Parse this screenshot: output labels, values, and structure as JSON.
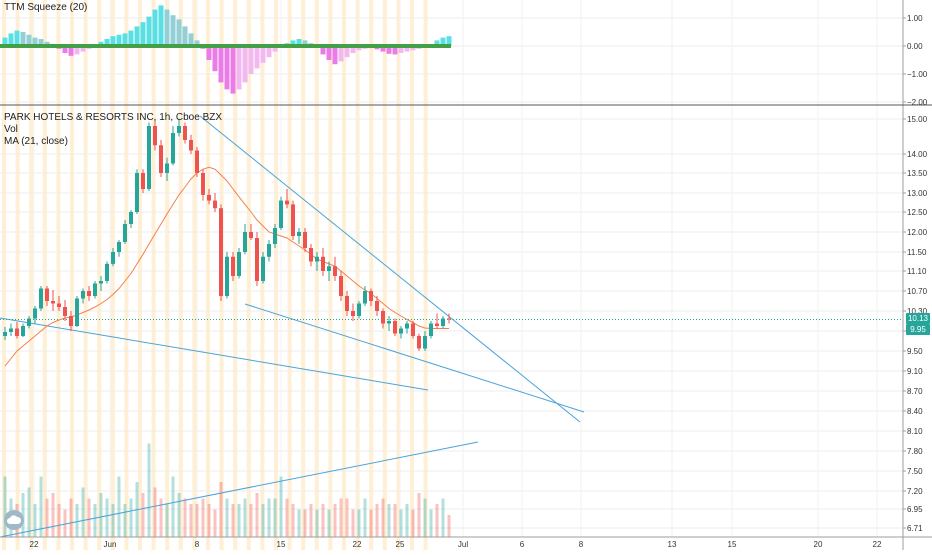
{
  "indicator_panel": {
    "title": "TTM Squeeze (20)",
    "ticks": [
      "1.00",
      "0.00",
      "−1.00",
      "−2.00"
    ]
  },
  "main_panel": {
    "title": "PARK HOTELS & RESORTS INC, 1h, Cboe BZX",
    "vol_label": "Vol",
    "ma_label": "MA (21, close)",
    "price_ticks": [
      "15.00",
      "14.00",
      "13.50",
      "13.00",
      "12.50",
      "12.00",
      "11.50",
      "11.10",
      "10.70",
      "10.30",
      "9.90",
      "9.50",
      "9.10",
      "8.70",
      "8.40",
      "8.10",
      "7.80",
      "7.50",
      "7.20",
      "6.95",
      "6.71"
    ],
    "last_price_tag": "10.13",
    "ma_tag": "9.95"
  },
  "x_axis": {
    "labels": [
      "22",
      "Jun",
      "8",
      "15",
      "22",
      "25",
      "Jul",
      "6",
      "8",
      "13",
      "15",
      "20",
      "22"
    ]
  },
  "colors": {
    "up": "#26a69a",
    "down": "#ef5350",
    "ma": "#f57f4a",
    "trendline": "#4aa3d9",
    "session": "#ffe2b0",
    "squeeze_pos_strong": "#59e0e6",
    "squeeze_pos_weak": "#92cfd6",
    "squeeze_neg_strong": "#ea7ce8",
    "squeeze_neg_weak": "#f2b8f0",
    "zero_line": "#43a047"
  },
  "chart_data": {
    "type": "candlestick",
    "title": "PARK HOTELS & RESORTS INC, 1h, Cboe BZX",
    "ylim": [
      6.7,
      15.2
    ],
    "ohlc": [
      [
        9.8,
        9.98,
        9.72,
        9.88
      ],
      [
        9.88,
        10.05,
        9.8,
        9.95
      ],
      [
        9.95,
        10.08,
        9.75,
        9.8
      ],
      [
        9.8,
        10.05,
        9.78,
        10.0
      ],
      [
        10.0,
        10.2,
        9.95,
        10.15
      ],
      [
        10.15,
        10.4,
        10.05,
        10.35
      ],
      [
        10.35,
        10.8,
        10.3,
        10.75
      ],
      [
        10.75,
        10.8,
        10.4,
        10.5
      ],
      [
        10.5,
        10.72,
        10.3,
        10.45
      ],
      [
        10.45,
        10.6,
        10.3,
        10.38
      ],
      [
        10.38,
        10.52,
        10.1,
        10.2
      ],
      [
        10.2,
        10.3,
        9.9,
        10.0
      ],
      [
        10.0,
        10.6,
        9.98,
        10.55
      ],
      [
        10.55,
        10.75,
        10.45,
        10.7
      ],
      [
        10.7,
        10.8,
        10.5,
        10.6
      ],
      [
        10.6,
        10.9,
        10.55,
        10.85
      ],
      [
        10.85,
        11.0,
        10.7,
        10.9
      ],
      [
        10.9,
        11.3,
        10.85,
        11.25
      ],
      [
        11.25,
        11.6,
        11.2,
        11.5
      ],
      [
        11.5,
        11.8,
        11.4,
        11.75
      ],
      [
        11.75,
        12.3,
        11.7,
        12.2
      ],
      [
        12.2,
        12.55,
        12.1,
        12.5
      ],
      [
        12.5,
        13.6,
        12.45,
        13.5
      ],
      [
        13.5,
        13.6,
        13.0,
        13.1
      ],
      [
        13.1,
        14.9,
        13.05,
        14.8
      ],
      [
        14.8,
        15.0,
        14.1,
        14.25
      ],
      [
        14.25,
        14.4,
        13.4,
        13.5
      ],
      [
        13.5,
        13.9,
        13.3,
        13.75
      ],
      [
        13.75,
        14.8,
        13.7,
        14.6
      ],
      [
        14.6,
        15.0,
        14.5,
        14.8
      ],
      [
        14.8,
        14.9,
        14.3,
        14.4
      ],
      [
        14.4,
        14.55,
        14.0,
        14.1
      ],
      [
        14.1,
        14.2,
        13.4,
        13.5
      ],
      [
        13.5,
        13.6,
        12.8,
        12.95
      ],
      [
        12.95,
        13.1,
        12.7,
        12.8
      ],
      [
        12.8,
        13.0,
        12.5,
        12.6
      ],
      [
        12.6,
        12.7,
        10.5,
        10.6
      ],
      [
        10.6,
        11.5,
        10.55,
        11.4
      ],
      [
        11.4,
        11.5,
        10.9,
        11.0
      ],
      [
        11.0,
        11.6,
        10.95,
        11.5
      ],
      [
        11.5,
        12.2,
        11.45,
        12.0
      ],
      [
        12.0,
        12.2,
        11.8,
        11.85
      ],
      [
        11.85,
        12.0,
        10.8,
        10.9
      ],
      [
        10.9,
        11.5,
        10.85,
        11.4
      ],
      [
        11.4,
        11.8,
        11.3,
        11.7
      ],
      [
        11.7,
        12.2,
        11.6,
        12.1
      ],
      [
        12.1,
        12.9,
        12.05,
        12.8
      ],
      [
        12.8,
        13.1,
        12.6,
        12.7
      ],
      [
        12.7,
        12.8,
        11.8,
        11.9
      ],
      [
        11.9,
        12.1,
        11.7,
        12.0
      ],
      [
        12.0,
        12.1,
        11.5,
        11.6
      ],
      [
        11.6,
        11.7,
        11.2,
        11.3
      ],
      [
        11.3,
        11.5,
        11.1,
        11.4
      ],
      [
        11.4,
        11.6,
        11.0,
        11.1
      ],
      [
        11.1,
        11.3,
        10.9,
        11.2
      ],
      [
        11.2,
        11.4,
        10.9,
        11.0
      ],
      [
        11.0,
        11.1,
        10.5,
        10.6
      ],
      [
        10.6,
        10.7,
        10.2,
        10.3
      ],
      [
        10.3,
        10.45,
        10.1,
        10.2
      ],
      [
        10.2,
        10.5,
        10.15,
        10.45
      ],
      [
        10.45,
        10.8,
        10.4,
        10.7
      ],
      [
        10.7,
        10.75,
        10.4,
        10.5
      ],
      [
        10.5,
        10.6,
        10.2,
        10.3
      ],
      [
        10.3,
        10.35,
        9.95,
        10.05
      ],
      [
        10.05,
        10.2,
        9.9,
        10.1
      ],
      [
        10.1,
        10.15,
        9.8,
        9.85
      ],
      [
        9.85,
        10.0,
        9.75,
        9.95
      ],
      [
        9.95,
        10.1,
        9.85,
        10.05
      ],
      [
        10.05,
        10.1,
        9.75,
        9.8
      ],
      [
        9.8,
        9.85,
        9.5,
        9.55
      ],
      [
        9.55,
        9.9,
        9.5,
        9.8
      ],
      [
        9.8,
        10.1,
        9.75,
        10.05
      ],
      [
        10.05,
        10.25,
        9.95,
        10.0
      ],
      [
        10.0,
        10.2,
        9.95,
        10.15
      ],
      [
        10.15,
        10.25,
        10.05,
        10.13
      ]
    ],
    "ma21": [
      9.2,
      9.35,
      9.5,
      9.6,
      9.7,
      9.8,
      9.9,
      10.0,
      10.07,
      10.12,
      10.16,
      10.18,
      10.22,
      10.27,
      10.32,
      10.38,
      10.45,
      10.53,
      10.63,
      10.75,
      10.9,
      11.05,
      11.25,
      11.45,
      11.7,
      11.95,
      12.2,
      12.45,
      12.7,
      12.95,
      13.15,
      13.35,
      13.5,
      13.6,
      13.65,
      13.6,
      13.45,
      13.3,
      13.1,
      12.9,
      12.7,
      12.5,
      12.3,
      12.15,
      12.0,
      11.95,
      11.9,
      11.85,
      11.75,
      11.65,
      11.55,
      11.45,
      11.35,
      11.3,
      11.25,
      11.2,
      11.1,
      11.0,
      10.9,
      10.8,
      10.72,
      10.65,
      10.55,
      10.45,
      10.35,
      10.27,
      10.2,
      10.13,
      10.07,
      10.0,
      9.96,
      9.95,
      9.95,
      9.95,
      9.95
    ],
    "volume": [
      0.55,
      0.35,
      0.3,
      0.4,
      0.45,
      0.3,
      0.55,
      0.35,
      0.4,
      0.3,
      0.25,
      0.35,
      0.3,
      0.45,
      0.35,
      0.3,
      0.4,
      0.35,
      0.3,
      0.55,
      0.3,
      0.35,
      0.5,
      0.4,
      0.85,
      0.45,
      0.35,
      0.3,
      0.55,
      0.4,
      0.35,
      0.3,
      0.3,
      0.35,
      0.3,
      0.25,
      0.5,
      0.35,
      0.3,
      0.3,
      0.35,
      0.3,
      0.4,
      0.3,
      0.35,
      0.35,
      0.55,
      0.35,
      0.3,
      0.25,
      0.25,
      0.3,
      0.25,
      0.3,
      0.25,
      0.3,
      0.35,
      0.35,
      0.25,
      0.25,
      0.35,
      0.25,
      0.3,
      0.35,
      0.3,
      0.3,
      0.25,
      0.3,
      0.25,
      0.4,
      0.35,
      0.25,
      0.3,
      0.35,
      0.2
    ],
    "squeeze_momentum": [
      0.3,
      0.45,
      0.55,
      0.5,
      0.4,
      0.3,
      0.25,
      0.15,
      0.05,
      -0.1,
      -0.25,
      -0.35,
      -0.3,
      -0.2,
      -0.1,
      0.05,
      0.15,
      0.25,
      0.35,
      0.4,
      0.45,
      0.55,
      0.7,
      0.85,
      1.05,
      1.3,
      1.45,
      1.3,
      1.1,
      0.95,
      0.7,
      0.45,
      0.2,
      -0.1,
      -0.5,
      -0.9,
      -1.3,
      -1.55,
      -1.7,
      -1.55,
      -1.3,
      -1.0,
      -0.8,
      -0.6,
      -0.4,
      -0.2,
      -0.05,
      0.1,
      0.2,
      0.25,
      0.2,
      0.1,
      -0.05,
      -0.3,
      -0.5,
      -0.65,
      -0.55,
      -0.4,
      -0.25,
      -0.15,
      -0.1,
      -0.08,
      -0.12,
      -0.2,
      -0.28,
      -0.3,
      -0.25,
      -0.2,
      -0.15,
      -0.1,
      -0.05,
      0.05,
      0.2,
      0.3,
      0.35
    ]
  }
}
